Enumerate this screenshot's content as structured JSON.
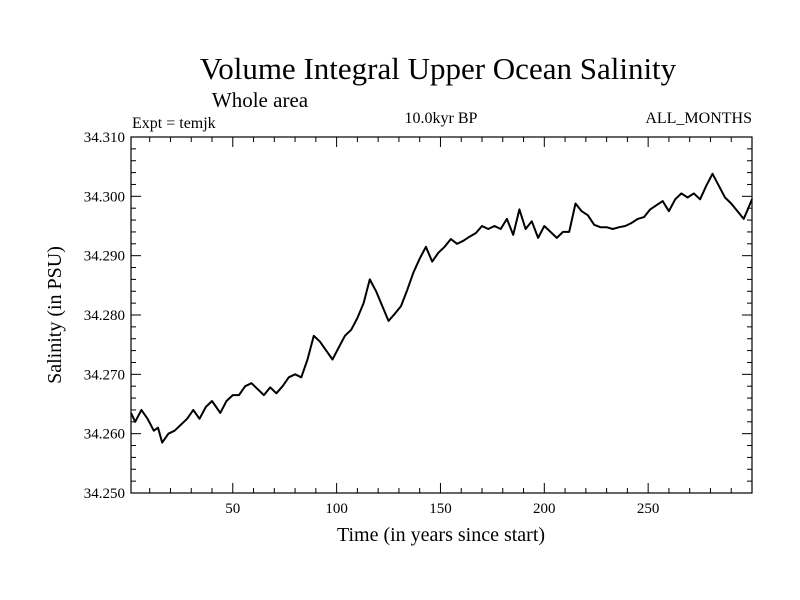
{
  "chart_data": {
    "type": "line",
    "title": "Volume Integral Upper Ocean Salinity",
    "subtitle": "Whole area",
    "annotations": {
      "left": "Expt = temjk",
      "center": "10.0kyr BP",
      "right": "ALL_MONTHS"
    },
    "xlabel": "Time (in years since start)",
    "ylabel": "Salinity (in PSU)",
    "xlim": [
      1,
      300
    ],
    "ylim": [
      34.25,
      34.31
    ],
    "xticks": [
      50,
      100,
      150,
      200,
      250
    ],
    "yticks": [
      "34.250",
      "34.260",
      "34.270",
      "34.280",
      "34.290",
      "34.300",
      "34.310"
    ],
    "grid": false,
    "series": [
      {
        "name": "salinity",
        "color": "#000000",
        "x": [
          1,
          3,
          6,
          9,
          12,
          14,
          16,
          19,
          22,
          25,
          28,
          31,
          34,
          37,
          40,
          42,
          44,
          47,
          50,
          53,
          56,
          59,
          62,
          65,
          68,
          71,
          74,
          77,
          80,
          83,
          86,
          89,
          92,
          95,
          98,
          101,
          104,
          107,
          110,
          113,
          116,
          119,
          122,
          125,
          128,
          131,
          134,
          137,
          140,
          143,
          146,
          149,
          152,
          155,
          158,
          161,
          164,
          167,
          170,
          173,
          176,
          179,
          182,
          185,
          188,
          191,
          194,
          197,
          200,
          203,
          206,
          209,
          212,
          215,
          218,
          221,
          224,
          227,
          230,
          233,
          236,
          239,
          242,
          245,
          248,
          251,
          254,
          257,
          260,
          263,
          266,
          269,
          272,
          275,
          278,
          281,
          284,
          287,
          290,
          293,
          296,
          298,
          300
        ],
        "values": [
          34.2635,
          34.262,
          34.264,
          34.2625,
          34.2605,
          34.261,
          34.2585,
          34.26,
          34.2605,
          34.2615,
          34.2625,
          34.264,
          34.2625,
          34.2645,
          34.2655,
          34.2645,
          34.2635,
          34.2655,
          34.2665,
          34.2665,
          34.268,
          34.2685,
          34.2675,
          34.2665,
          34.2678,
          34.2668,
          34.268,
          34.2695,
          34.27,
          34.2695,
          34.2725,
          34.2765,
          34.2755,
          34.274,
          34.2725,
          34.2745,
          34.2765,
          34.2775,
          34.2795,
          34.282,
          34.286,
          34.284,
          34.2815,
          34.279,
          34.2802,
          34.2815,
          34.2842,
          34.2872,
          34.2895,
          34.2915,
          34.289,
          34.2905,
          34.2915,
          34.2928,
          34.292,
          34.2925,
          34.2932,
          34.2938,
          34.295,
          34.2945,
          34.295,
          34.2945,
          34.2962,
          34.2935,
          34.2978,
          34.2945,
          34.2958,
          34.293,
          34.295,
          34.294,
          34.293,
          34.294,
          34.294,
          34.2988,
          34.2975,
          34.2968,
          34.2952,
          34.2948,
          34.2948,
          34.2945,
          34.2948,
          34.295,
          34.2955,
          34.2962,
          34.2965,
          34.2978,
          34.2985,
          34.2992,
          34.2975,
          34.2995,
          34.3005,
          34.2998,
          34.3005,
          34.2995,
          34.3018,
          34.3038,
          34.3018,
          34.2998,
          34.2988,
          34.2975,
          34.2962,
          34.2978,
          34.2995
        ]
      }
    ]
  }
}
